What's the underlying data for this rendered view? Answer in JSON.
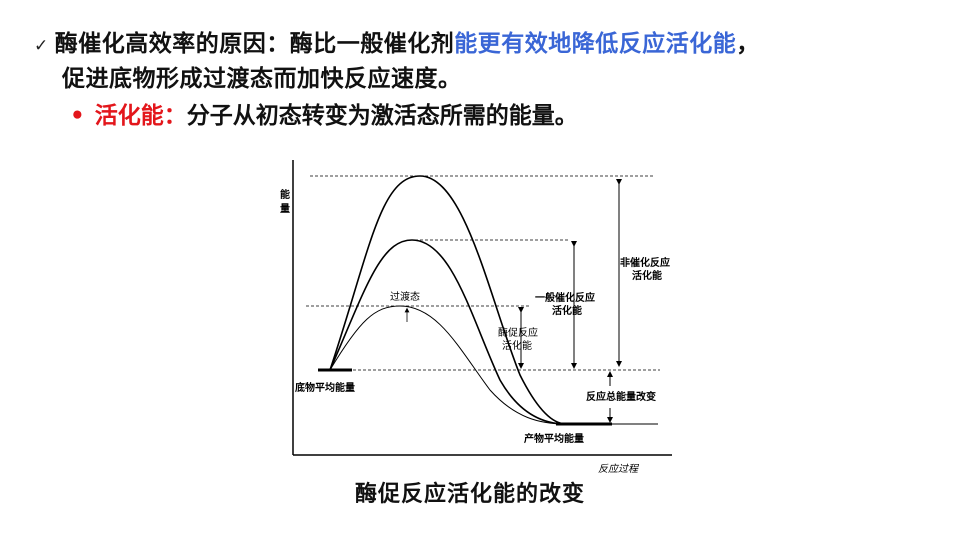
{
  "point1": {
    "check_icon": "✓",
    "text_a": "酶催化高效率的原因：酶比一般催化剂",
    "text_highlight": "能更有效地降低反应活化能",
    "text_b": "，",
    "text_c": "促进底物形成过渡态而加快反应速度。"
  },
  "point2": {
    "bullet": "•",
    "term": "活化能：",
    "definition": "分子从初态转变为激活态所需的能量。"
  },
  "diagram": {
    "y_axis_label_1": "能",
    "y_axis_label_2": "量",
    "x_axis_label": "反应过程",
    "transition_state": "过渡态",
    "uncatalyzed_1": "非催化反应",
    "uncatalyzed_2": "活化能",
    "general_1": "一般催化反应",
    "general_2": "活化能",
    "enzyme_1": "酶促反应",
    "enzyme_2": "活化能",
    "substrate_level": "底物平均能量",
    "product_level": "产物平均能量",
    "total_change": "反应总能量改变"
  },
  "caption": "酶促反应活化能的改变",
  "colors": {
    "highlight": "#3a66d6",
    "term": "#e3161b"
  }
}
